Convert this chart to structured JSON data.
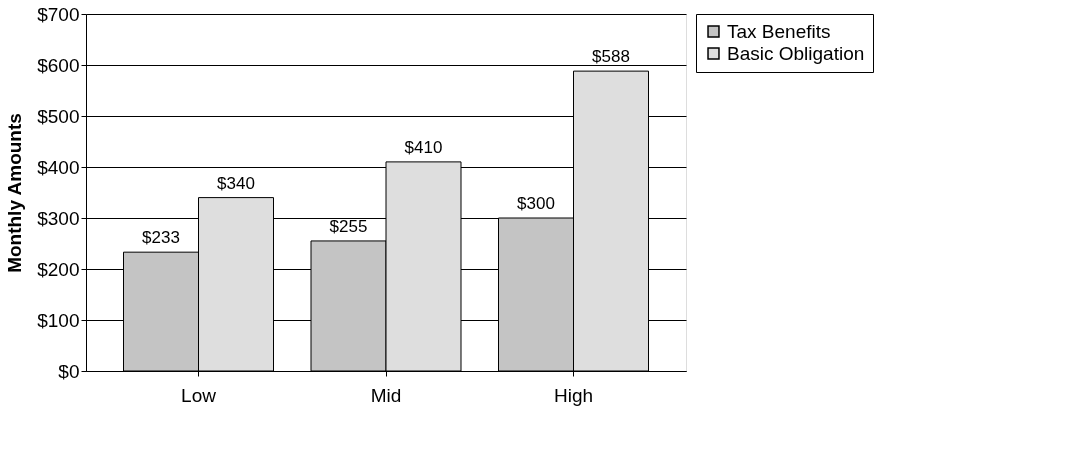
{
  "chart_data": {
    "type": "bar",
    "ylabel": "Monthly Amounts",
    "categories": [
      "Low",
      "Mid",
      "High"
    ],
    "series": [
      {
        "name": "Tax Benefits",
        "color": "#c4c4c4",
        "values": [
          233,
          255,
          300
        ],
        "value_labels": [
          "$233",
          "$255",
          "$300"
        ]
      },
      {
        "name": "Basic Obligation",
        "color": "#dedede",
        "values": [
          340,
          410,
          588
        ],
        "value_labels": [
          "$340",
          "$410",
          "$588"
        ]
      }
    ],
    "ylim": [
      0,
      700
    ],
    "yticks": [
      {
        "value": 0,
        "label": "$0"
      },
      {
        "value": 100,
        "label": "$100"
      },
      {
        "value": 200,
        "label": "$200"
      },
      {
        "value": 300,
        "label": "$300"
      },
      {
        "value": 400,
        "label": "$400"
      },
      {
        "value": 500,
        "label": "$500"
      },
      {
        "value": 600,
        "label": "$600"
      },
      {
        "value": 700,
        "label": "$700"
      }
    ],
    "grid": "y",
    "legend": "right"
  }
}
